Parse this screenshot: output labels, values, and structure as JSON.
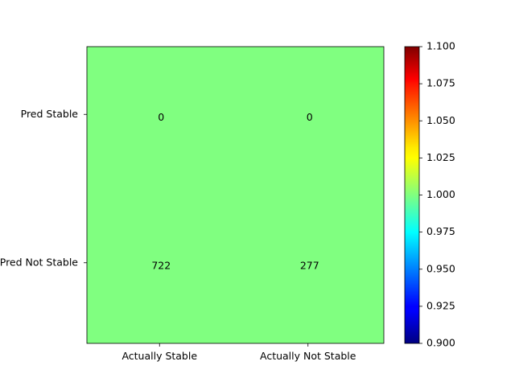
{
  "chart_data": {
    "type": "heatmap",
    "title": "",
    "xlabel": "",
    "ylabel": "",
    "x_categories": [
      "Actually Stable",
      "Actually Not Stable"
    ],
    "y_categories": [
      "Pred Stable",
      "Pred Not Stable"
    ],
    "cells": [
      {
        "row": 0,
        "col": 0,
        "label": "0"
      },
      {
        "row": 0,
        "col": 1,
        "label": "0"
      },
      {
        "row": 1,
        "col": 0,
        "label": "722"
      },
      {
        "row": 1,
        "col": 1,
        "label": "277"
      }
    ],
    "color_value": 1.0,
    "cell_color": "#80ff80",
    "colormap": "jet",
    "colorbar": {
      "min": 0.9,
      "max": 1.1,
      "ticks": [
        "0.900",
        "0.925",
        "0.950",
        "0.975",
        "1.000",
        "1.025",
        "1.050",
        "1.075",
        "1.100"
      ],
      "tick_values": [
        0.9,
        0.925,
        0.95,
        0.975,
        1.0,
        1.025,
        1.05,
        1.075,
        1.1
      ]
    }
  }
}
